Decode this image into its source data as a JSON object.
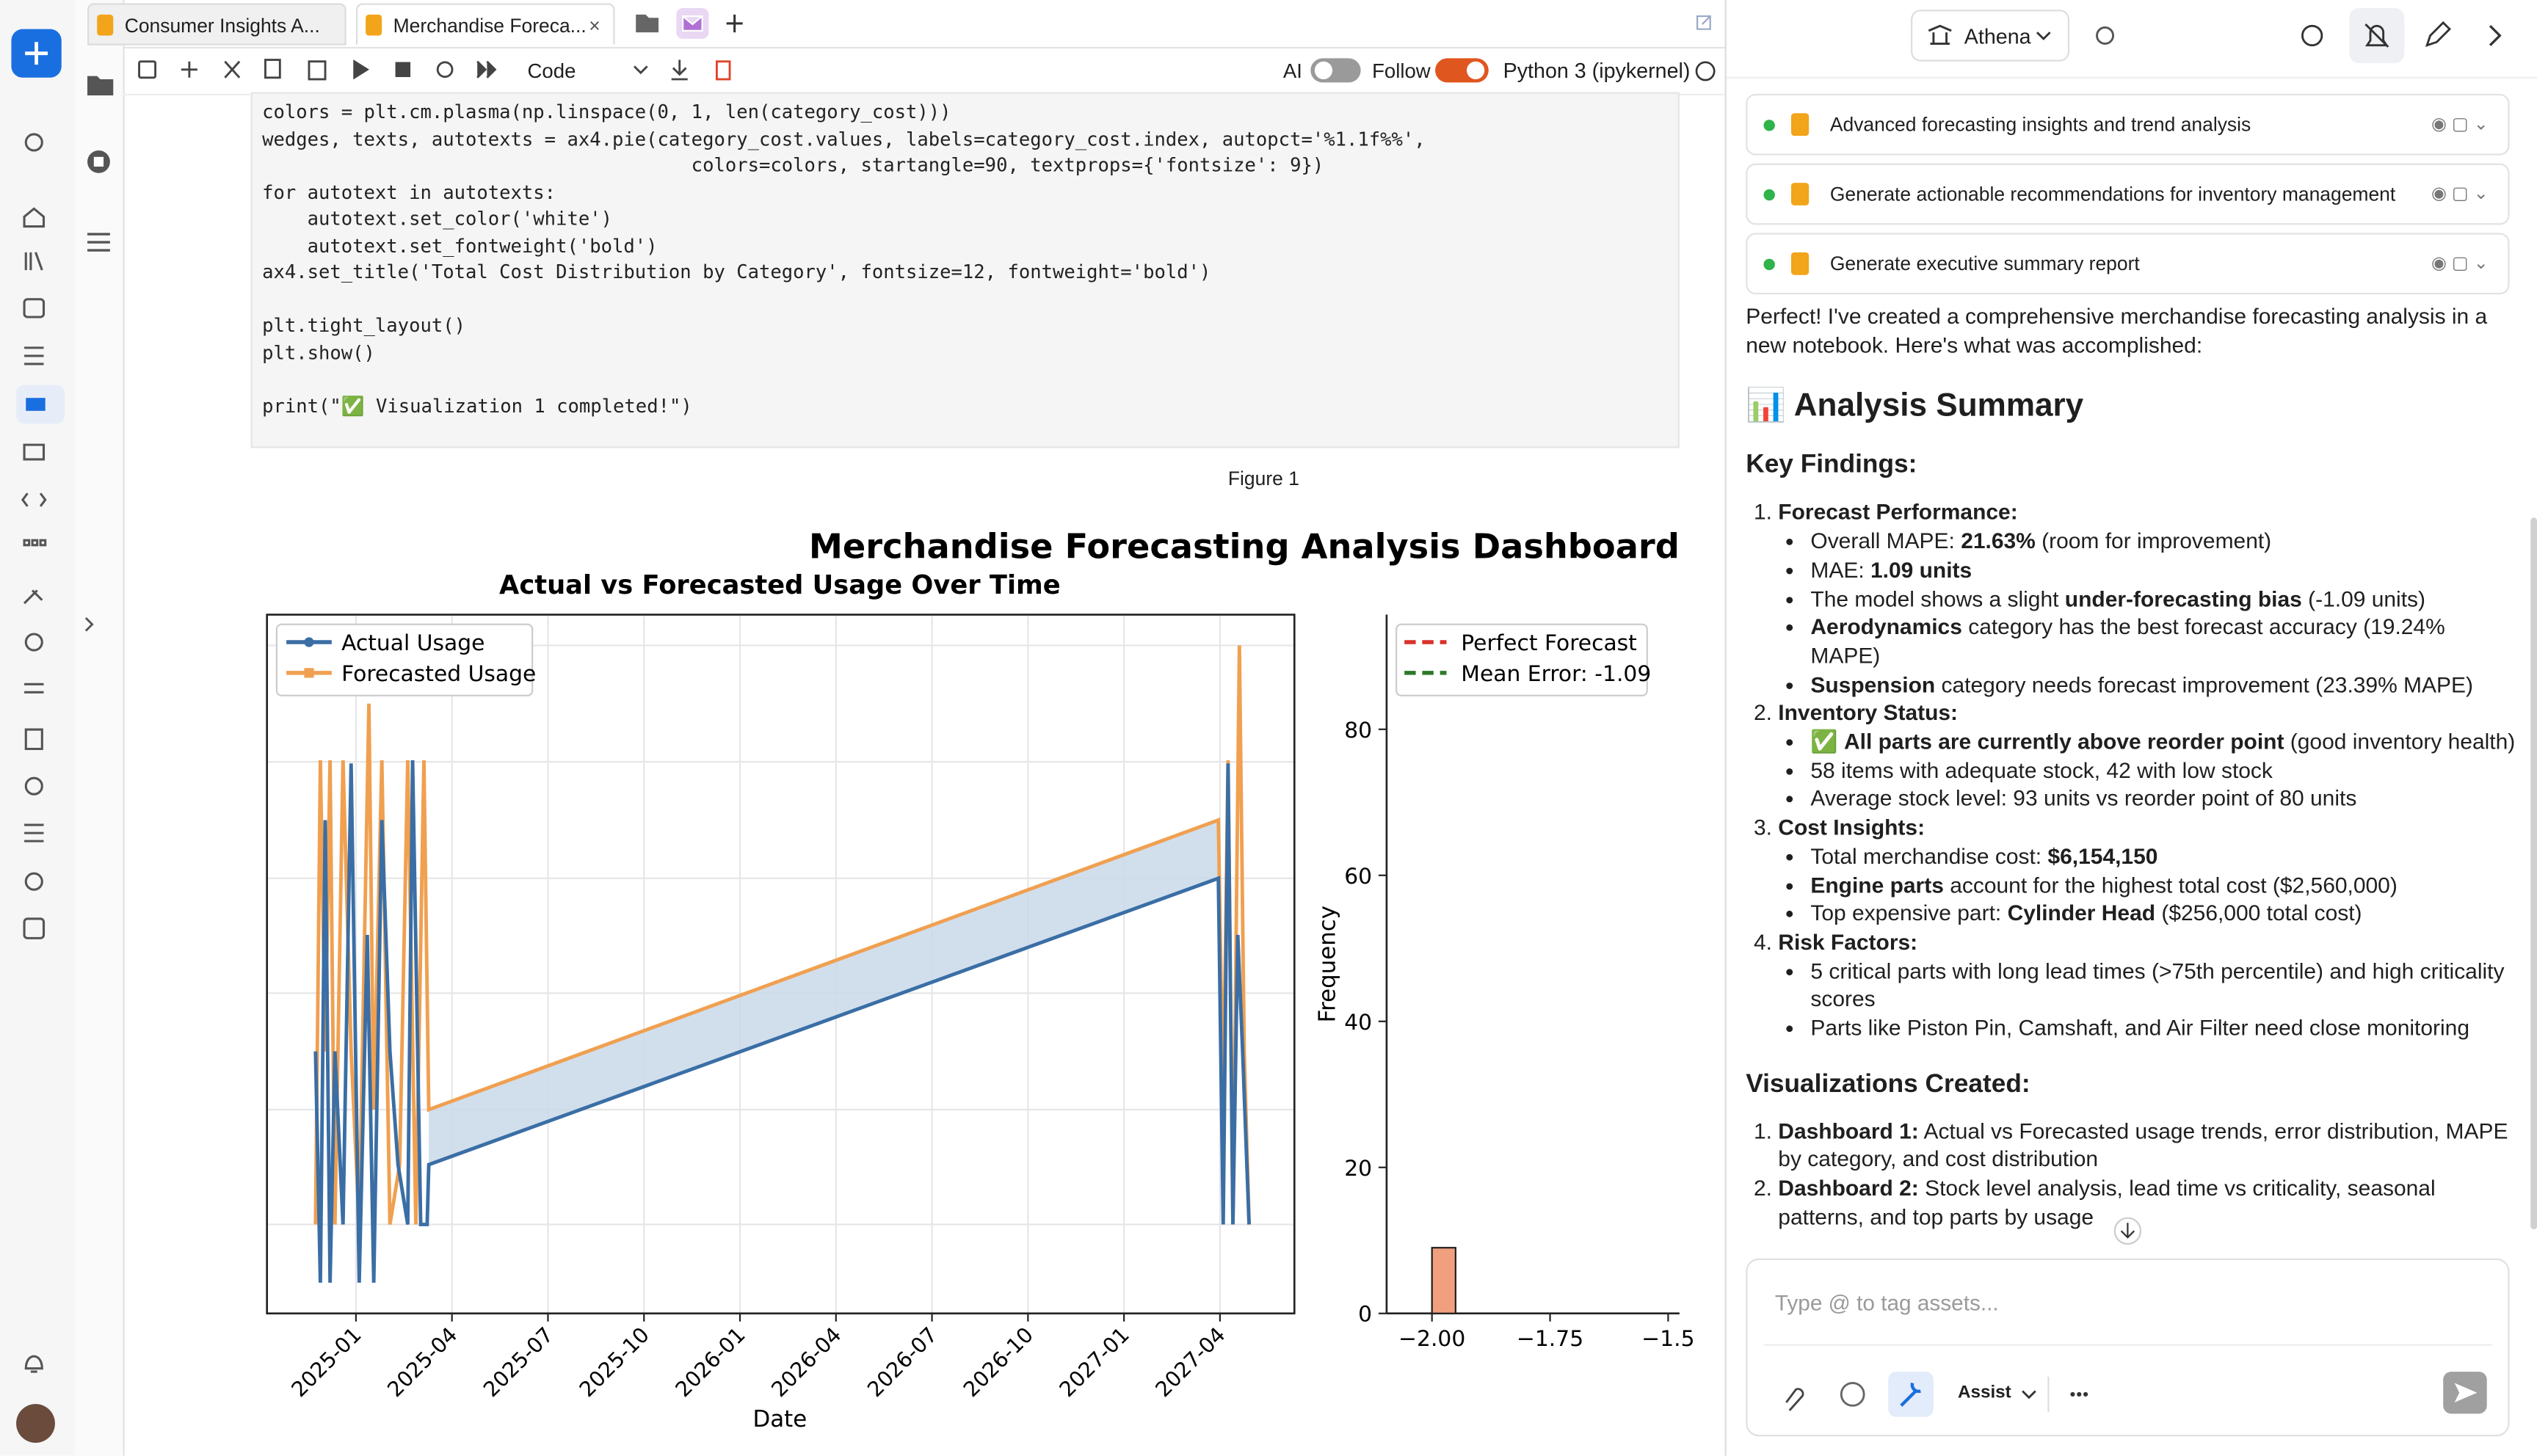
{
  "tabs": [
    "Consumer Insights A...",
    "Merchandise Foreca..."
  ],
  "toolbar": {
    "cell_type": "Code",
    "ai": "AI",
    "follow": "Follow",
    "kernel": "Python 3 (ipykernel)"
  },
  "code": "colors = plt.cm.plasma(np.linspace(0, 1, len(category_cost)))\nwedges, texts, autotexts = ax4.pie(category_cost.values, labels=category_cost.index, autopct='%1.1f%%',\n                                      colors=colors, startangle=90, textprops={'fontsize': 9})\nfor autotext in autotexts:\n    autotext.set_color('white')\n    autotext.set_fontweight('bold')\nax4.set_title('Total Cost Distribution by Category', fontsize=12, fontweight='bold')\n\nplt.tight_layout()\nplt.show()\n\nprint(\"✅ Visualization 1 completed!\")",
  "figure": {
    "caption": "Figure 1",
    "title": "Merchandise Forecasting Analysis Dashboard",
    "line_plot": {
      "title": "Actual vs Forecasted Usage Over Time",
      "xlabel": "Date",
      "legend": [
        "Actual Usage",
        "Forecasted Usage"
      ],
      "xticks": [
        "2025-01",
        "2025-04",
        "2025-07",
        "2025-10",
        "2026-01",
        "2026-04",
        "2026-07",
        "2026-10",
        "2027-01",
        "2027-04"
      ]
    },
    "histogram": {
      "ylabel": "Frequency",
      "legend": [
        "Perfect Forecast",
        "Mean Error: -1.09"
      ],
      "color": "#f0a07f",
      "bins": [
        -2.0,
        -1.95
      ],
      "counts": [
        9
      ],
      "xlim": [
        -2.096,
        -1.476
      ],
      "ylim": [
        0,
        95.7
      ],
      "yticks": [
        0,
        20,
        40,
        60,
        80
      ],
      "xticks": [
        {
          "value": -2.0,
          "label": "−2.00"
        },
        {
          "value": -1.75,
          "label": "−1.75"
        },
        {
          "value": -1.5,
          "label": "−1.5"
        }
      ]
    }
  },
  "assistant": {
    "name": "Athena",
    "tasks": [
      "Advanced forecasting insights and trend analysis",
      "Generate actionable recommendations for inventory management",
      "Generate executive summary report"
    ],
    "intro": "Perfect! I've created a comprehensive merchandise forecasting analysis in a new notebook. Here's what was accomplished:",
    "heading": "📊 Analysis Summary",
    "findings": {
      "heading": "Key Findings:",
      "items": [
        {
          "title": "Forecast Performance:",
          "bullets": [
            [
              "Overall MAPE: ",
              {
                "b": "21.63%"
              },
              " (room for improvement)"
            ],
            [
              "MAE: ",
              {
                "b": "1.09 units"
              }
            ],
            [
              "The model shows a slight ",
              {
                "b": "under-forecasting bias"
              },
              " (-1.09 units)"
            ],
            [
              {
                "b": "Aerodynamics"
              },
              " category has the best forecast accuracy (19.24% MAPE)"
            ],
            [
              {
                "b": "Suspension"
              },
              " category needs forecast improvement (23.39% MAPE)"
            ]
          ]
        },
        {
          "title": "Inventory Status:",
          "bullets": [
            [
              "✅ ",
              {
                "b": "All parts are currently above reorder point"
              },
              " (good inventory health)"
            ],
            [
              "58 items with adequate stock, 42 with low stock"
            ],
            [
              "Average stock level: 93 units vs reorder point of 80 units"
            ]
          ]
        },
        {
          "title": "Cost Insights:",
          "bullets": [
            [
              "Total merchandise cost: ",
              {
                "b": "$6,154,150"
              }
            ],
            [
              {
                "b": "Engine parts"
              },
              " account for the highest total cost ($2,560,000)"
            ],
            [
              "Top expensive part: ",
              {
                "b": "Cylinder Head"
              },
              " ($256,000 total cost)"
            ]
          ]
        },
        {
          "title": "Risk Factors:",
          "bullets": [
            [
              "5 critical parts with long lead times (>75th percentile) and high criticality scores"
            ],
            [
              "Parts like Piston Pin, Camshaft, and Air Filter need close monitoring"
            ]
          ]
        }
      ]
    },
    "visualizations": {
      "heading": "Visualizations Created:",
      "items": [
        {
          "title": "Dashboard 1:",
          "text": " Actual vs Forecasted usage trends, error distribution, MAPE by category, and cost distribution"
        },
        {
          "title": "Dashboard 2:",
          "text": " Stock level analysis, lead time vs criticality, seasonal patterns, and top parts by usage"
        }
      ]
    },
    "input_placeholder": "Type @ to tag assets...",
    "mode": "Assist"
  }
}
